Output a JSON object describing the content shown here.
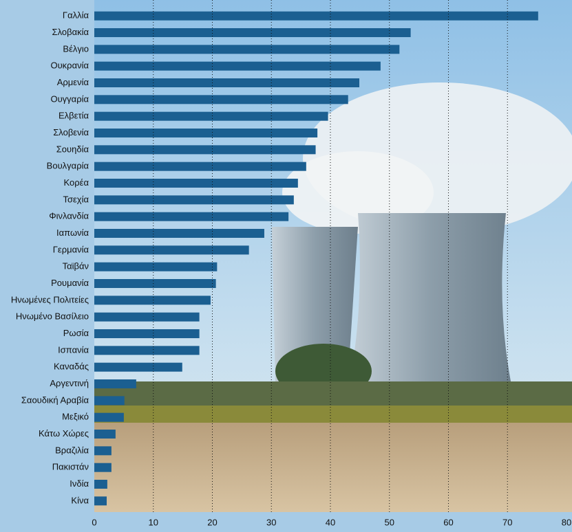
{
  "chart_data": {
    "type": "bar",
    "orientation": "horizontal",
    "categories": [
      "Γαλλία",
      "Σλοβακία",
      "Βέλγιο",
      "Ουκρανία",
      "Αρμενία",
      "Ουγγαρία",
      "Ελβετία",
      "Σλοβενία",
      "Σουηδία",
      "Βουλγαρία",
      "Κορέα",
      "Τσεχία",
      "Φινλανδία",
      "Ιαπωνία",
      "Γερμανία",
      "Ταϊβάν",
      "Ρουμανία",
      "Ηνωμένες Πολιτείες",
      "Ηνωμένο Βασίλειο",
      "Ρωσία",
      "Ισπανία",
      "Καναδάς",
      "Αργεντινή",
      "Σαουδική Αραβία",
      "Μεξικό",
      "Κάτω Χώρες",
      "Βραζιλία",
      "Πακιστάν",
      "Ινδία",
      "Κίνα"
    ],
    "values": [
      75.2,
      53.6,
      51.7,
      48.5,
      44.9,
      43.0,
      39.6,
      37.8,
      37.5,
      35.9,
      34.5,
      33.8,
      32.9,
      28.8,
      26.2,
      20.8,
      20.6,
      19.7,
      17.8,
      17.8,
      17.8,
      14.9,
      7.1,
      5.1,
      5.0,
      3.6,
      2.9,
      2.9,
      2.2,
      2.1
    ],
    "color": "#1b5f91",
    "xlim": [
      0,
      80
    ],
    "xticks": [
      0,
      10,
      20,
      30,
      40,
      50,
      60,
      70,
      80
    ],
    "grid": true
  }
}
